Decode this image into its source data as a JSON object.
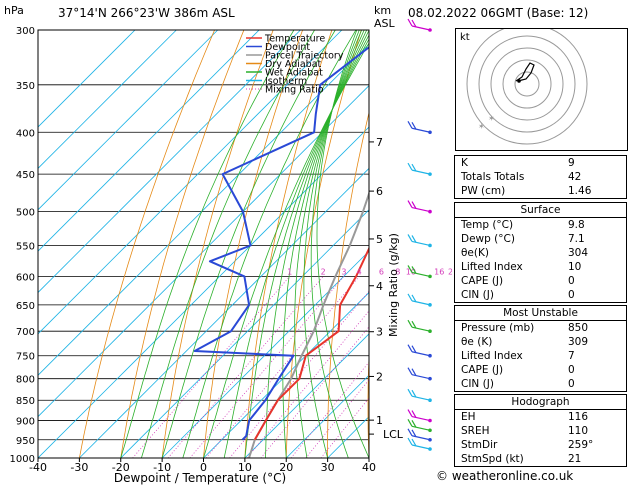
{
  "header": {
    "location": "37°14'N  266°23'W  386m  ASL",
    "datetime": "08.02.2022  06GMT  (Base: 12)"
  },
  "axes": {
    "ylabel_units": "hPa",
    "height_units": "km",
    "height_units2": "ASL",
    "xlabel": "Dewpoint / Temperature (°C)",
    "mixing_label": "Mixing Ratio (g/kg)",
    "pressure_ticks": [
      "300",
      "350",
      "400",
      "450",
      "500",
      "550",
      "600",
      "650",
      "700",
      "750",
      "800",
      "850",
      "900",
      "950",
      "1000"
    ],
    "x_ticks": [
      "-40",
      "-30",
      "-20",
      "-10",
      "0",
      "10",
      "20",
      "30",
      "40"
    ],
    "km_ticks": [
      "7",
      "6",
      "5",
      "4",
      "3",
      "2",
      "1"
    ],
    "lcl_label": "LCL",
    "mixing_ratio_labels": [
      "1",
      "2",
      "3",
      "4",
      "6",
      "8",
      "10",
      "16",
      "20",
      "25"
    ]
  },
  "legend": {
    "items": [
      {
        "label": "Temperature",
        "color": "#e8342c"
      },
      {
        "label": "Dewpoint",
        "color": "#2a49d6"
      },
      {
        "label": "Parcel Trajectory",
        "color": "#999999"
      },
      {
        "label": "Dry Adiabat",
        "color": "#e58a17"
      },
      {
        "label": "Wet Adiabat",
        "color": "#2bb02b"
      },
      {
        "label": "Isotherm",
        "color": "#1fb4e6"
      },
      {
        "label": "Mixing Ratio",
        "color": "#d33cba"
      }
    ]
  },
  "chart_data": {
    "type": "skew-t",
    "xlim": [
      -40,
      40
    ],
    "ylim_hpa": [
      1000,
      300
    ],
    "temperature": {
      "p": [
        300,
        350,
        400,
        450,
        500,
        550,
        600,
        650,
        700,
        750,
        800,
        850,
        900,
        950
      ],
      "t": [
        -39,
        -34,
        -27,
        -20,
        -15,
        -11,
        -7,
        -4,
        2,
        0,
        4,
        4,
        6,
        8
      ]
    },
    "dewpoint": {
      "p": [
        300,
        350,
        380,
        400,
        450,
        500,
        550,
        575,
        600,
        650,
        700,
        740,
        750,
        800,
        850,
        900,
        940,
        950
      ],
      "t": [
        -58,
        -62,
        -56,
        -52,
        -64,
        -50,
        -40,
        -46,
        -34,
        -26,
        -24,
        -28,
        -3,
        -1,
        1,
        2,
        5,
        5
      ]
    },
    "parcel": {
      "p": [
        1000,
        950,
        900,
        850,
        800,
        750,
        700,
        650,
        600,
        550,
        500,
        450,
        400,
        350,
        300
      ],
      "t": [
        11,
        8,
        6,
        4,
        2,
        -1,
        -4,
        -8,
        -12,
        -16,
        -21,
        -27,
        -34,
        -42,
        -51
      ]
    }
  },
  "indices": {
    "k_label": "K",
    "k": "9",
    "tt_label": "Totals Totals",
    "tt": "42",
    "pw_label": "PW (cm)",
    "pw": "1.46"
  },
  "surface": {
    "title": "Surface",
    "temp_label": "Temp (°C)",
    "temp": "9.8",
    "dewp_label": "Dewp (°C)",
    "dewp": "7.1",
    "theta_label": "θe(K)",
    "theta": "304",
    "li_label": "Lifted Index",
    "li": "10",
    "cape_label": "CAPE (J)",
    "cape": "0",
    "cin_label": "CIN (J)",
    "cin": "0"
  },
  "unstable": {
    "title": "Most Unstable",
    "p_label": "Pressure (mb)",
    "p": "850",
    "theta_label": "θe (K)",
    "theta": "309",
    "li_label": "Lifted Index",
    "li": "7",
    "cape_label": "CAPE (J)",
    "cape": "0",
    "cin_label": "CIN (J)",
    "cin": "0"
  },
  "hodograph": {
    "title": "Hodograph",
    "kt_label": "kt",
    "eh_label": "EH",
    "eh": "116",
    "sreh_label": "SREH",
    "sreh": "110",
    "stmdir_label": "StmDir",
    "stmdir": "259°",
    "stmspd_label": "StmSpd (kt)",
    "stmspd": "21"
  },
  "footer": {
    "text": "© weatheronline.co.uk"
  }
}
